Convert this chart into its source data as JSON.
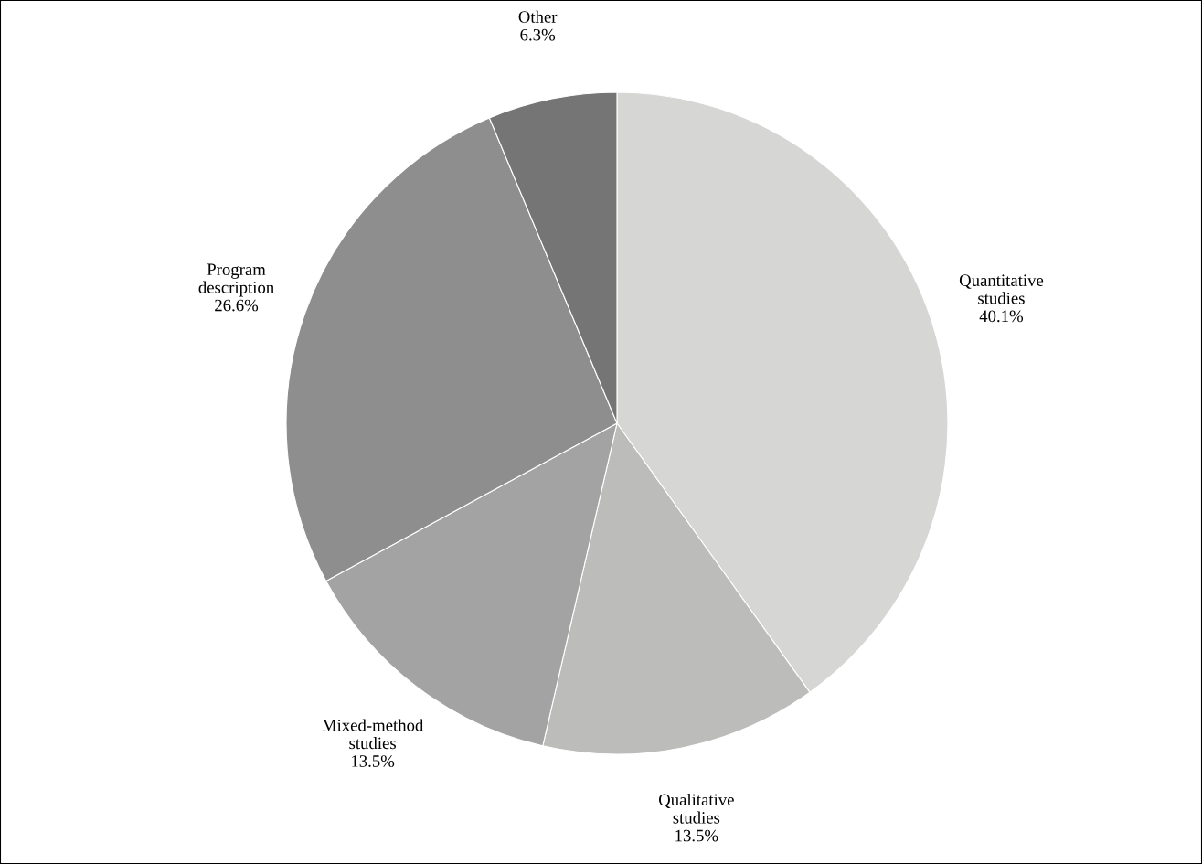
{
  "chart_data": {
    "type": "pie",
    "categories": [
      "Quantitative studies",
      "Qualitative studies",
      "Mixed-method studies",
      "Program description",
      "Other"
    ],
    "values": [
      40.1,
      13.5,
      13.5,
      26.6,
      6.3
    ],
    "value_labels": [
      "40.1%",
      "13.5%",
      "13.5%",
      "26.6%",
      "6.3%"
    ],
    "colors": [
      "#d6d6d4",
      "#bcbcba",
      "#a3a3a3",
      "#8e8e8e",
      "#757575"
    ],
    "legend": false
  }
}
